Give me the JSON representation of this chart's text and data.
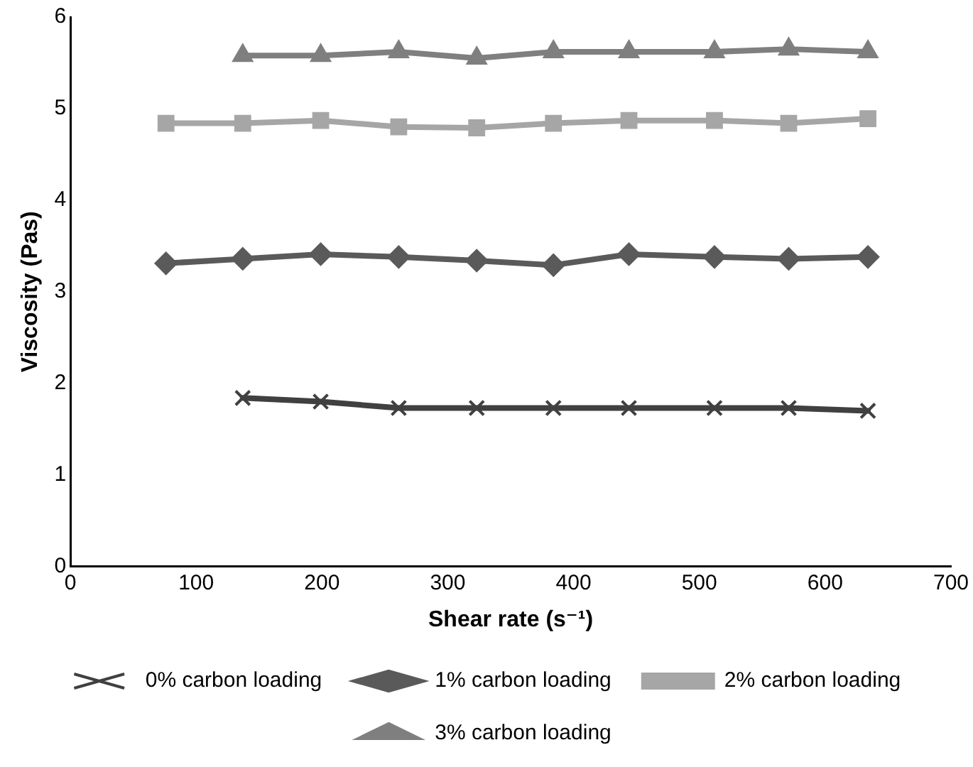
{
  "chart_data": {
    "type": "line",
    "xlabel": "Shear rate (s⁻¹)",
    "ylabel": "Viscosity (Pas)",
    "xlim": [
      0,
      700
    ],
    "xticks": [
      0,
      100,
      200,
      300,
      400,
      500,
      600,
      700
    ],
    "ylim": [
      0,
      6
    ],
    "yticks": [
      0,
      1,
      2,
      3,
      4,
      5,
      6
    ],
    "grid": false,
    "legend": "bottom",
    "line_style": "solid",
    "series": [
      {
        "name": "0% carbon loading",
        "color": "#404040",
        "marker": "cross",
        "x": [
          137,
          199,
          261,
          323,
          384,
          444,
          512,
          571,
          634
        ],
        "values": [
          1.84,
          1.8,
          1.73,
          1.73,
          1.73,
          1.73,
          1.73,
          1.73,
          1.7
        ]
      },
      {
        "name": "1% carbon loading",
        "color": "#5a5a5a",
        "marker": "diamond",
        "x": [
          76,
          137,
          199,
          261,
          323,
          384,
          444,
          512,
          571,
          634
        ],
        "values": [
          3.31,
          3.36,
          3.41,
          3.38,
          3.34,
          3.29,
          3.41,
          3.38,
          3.36,
          3.38
        ]
      },
      {
        "name": "2% carbon loading",
        "color": "#a6a6a6",
        "marker": "square",
        "x": [
          76,
          137,
          199,
          261,
          323,
          384,
          444,
          512,
          571,
          634
        ],
        "values": [
          4.84,
          4.84,
          4.87,
          4.8,
          4.79,
          4.84,
          4.87,
          4.87,
          4.84,
          4.89
        ]
      },
      {
        "name": "3% carbon loading",
        "color": "#7f7f7f",
        "marker": "triangle",
        "x": [
          137,
          199,
          261,
          323,
          384,
          444,
          512,
          571,
          634
        ],
        "values": [
          5.58,
          5.58,
          5.62,
          5.55,
          5.62,
          5.62,
          5.62,
          5.65,
          5.62
        ]
      }
    ]
  }
}
